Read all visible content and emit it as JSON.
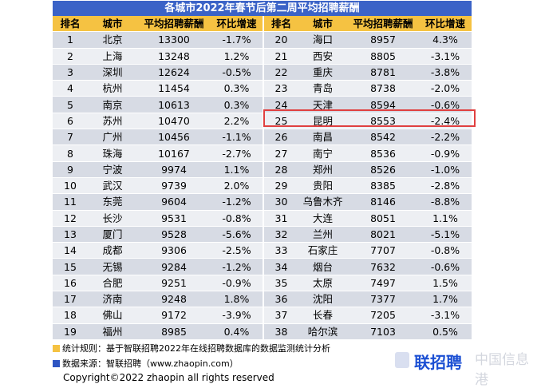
{
  "title": "各城市2022年春节后第二周平均招聘薪酬",
  "headers": [
    "排名",
    "城市",
    "平均招聘薪酬",
    "环比增速",
    "排名",
    "城市",
    "平均招聘薪酬",
    "环比增速"
  ],
  "rows": [
    [
      "1",
      "北京",
      "13300",
      "-1.7%",
      "20",
      "海口",
      "8957",
      "4.3%"
    ],
    [
      "2",
      "上海",
      "13248",
      "1.2%",
      "21",
      "西安",
      "8805",
      "-3.1%"
    ],
    [
      "3",
      "深圳",
      "12624",
      "-0.5%",
      "22",
      "重庆",
      "8781",
      "-3.8%"
    ],
    [
      "4",
      "杭州",
      "11454",
      "0.3%",
      "23",
      "青岛",
      "8738",
      "-2.0%"
    ],
    [
      "5",
      "南京",
      "10613",
      "0.3%",
      "24",
      "天津",
      "8594",
      "-0.6%"
    ],
    [
      "6",
      "苏州",
      "10470",
      "2.2%",
      "25",
      "昆明",
      "8553",
      "-2.4%"
    ],
    [
      "7",
      "广州",
      "10456",
      "-1.1%",
      "26",
      "南昌",
      "8542",
      "-2.2%"
    ],
    [
      "8",
      "珠海",
      "10167",
      "-2.7%",
      "27",
      "南宁",
      "8536",
      "-0.9%"
    ],
    [
      "9",
      "宁波",
      "9974",
      "1.1%",
      "28",
      "郑州",
      "8526",
      "-1.0%"
    ],
    [
      "10",
      "武汉",
      "9739",
      "2.0%",
      "29",
      "贵阳",
      "8385",
      "-2.8%"
    ],
    [
      "11",
      "东莞",
      "9604",
      "-1.2%",
      "30",
      "乌鲁木齐",
      "8146",
      "-8.8%"
    ],
    [
      "12",
      "长沙",
      "9531",
      "-0.8%",
      "31",
      "大连",
      "8051",
      "1.1%"
    ],
    [
      "13",
      "厦门",
      "9528",
      "-5.6%",
      "32",
      "兰州",
      "8021",
      "-5.1%"
    ],
    [
      "14",
      "成都",
      "9306",
      "-2.5%",
      "33",
      "石家庄",
      "7707",
      "-0.8%"
    ],
    [
      "15",
      "无锡",
      "9284",
      "-1.2%",
      "34",
      "烟台",
      "7632",
      "-0.6%"
    ],
    [
      "16",
      "合肥",
      "9251",
      "-0.9%",
      "35",
      "太原",
      "7497",
      "1.5%"
    ],
    [
      "17",
      "济南",
      "9248",
      "1.8%",
      "36",
      "沈阳",
      "7377",
      "1.7%"
    ],
    [
      "18",
      "佛山",
      "9172",
      "-3.9%",
      "37",
      "长春",
      "7205",
      "-3.1%"
    ],
    [
      "19",
      "福州",
      "8985",
      "0.4%",
      "38",
      "哈尔滨",
      "7103",
      "0.5%"
    ]
  ],
  "notes": {
    "rule": "统计规则：基于智联招聘2022年在线招聘数据库的数据监测统计分析",
    "source": "数据来源：智联招聘（www.zhaopin.com）",
    "copyright": "Copyright©2022 zhaopin all rights reserved"
  },
  "logo": {
    "brand": "联招聘",
    "watermark": "中国信息港"
  },
  "colors": {
    "title_bg": "#3b63c7",
    "header_bg": "#f5c242",
    "row_odd": "#d7dbe4",
    "row_even": "#edeff3",
    "highlight": "#e04040"
  }
}
